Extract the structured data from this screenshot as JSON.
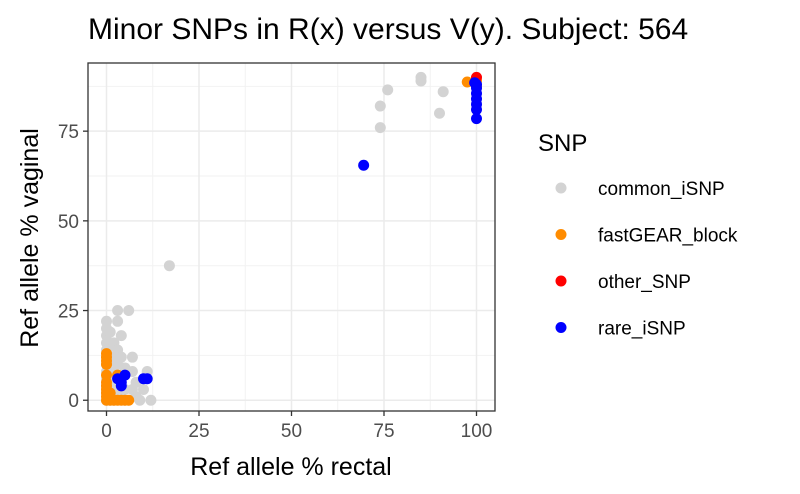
{
  "chart_data": {
    "type": "scatter",
    "title": "Minor SNPs in R(x) versus V(y). Subject: 564",
    "xlabel": "Ref allele % rectal",
    "ylabel": "Ref allele % vaginal",
    "xlim": [
      -5,
      105
    ],
    "ylim": [
      -3,
      94
    ],
    "x_ticks": [
      0,
      25,
      50,
      75,
      100
    ],
    "y_ticks": [
      0,
      25,
      50,
      75
    ],
    "grid": true,
    "legend": {
      "title": "SNP",
      "position": "right"
    },
    "series": [
      {
        "name": "common_iSNP",
        "color": "#d3d3d3",
        "points": [
          [
            0,
            22
          ],
          [
            0,
            20
          ],
          [
            0,
            18
          ],
          [
            0,
            16
          ],
          [
            0,
            14
          ],
          [
            0,
            12
          ],
          [
            0,
            10
          ],
          [
            0,
            8
          ],
          [
            0,
            6
          ],
          [
            0,
            4
          ],
          [
            0,
            2
          ],
          [
            0,
            0
          ],
          [
            1,
            19
          ],
          [
            1,
            15
          ],
          [
            1,
            11
          ],
          [
            1,
            7
          ],
          [
            1,
            3
          ],
          [
            1,
            0
          ],
          [
            2,
            16
          ],
          [
            2,
            12
          ],
          [
            2,
            8
          ],
          [
            2,
            4
          ],
          [
            2,
            0
          ],
          [
            3,
            25
          ],
          [
            3,
            22
          ],
          [
            3,
            14
          ],
          [
            3,
            10
          ],
          [
            3,
            5
          ],
          [
            3,
            1
          ],
          [
            4,
            18
          ],
          [
            4,
            12
          ],
          [
            4,
            6
          ],
          [
            4,
            2
          ],
          [
            5,
            9
          ],
          [
            5,
            3
          ],
          [
            5,
            0
          ],
          [
            6,
            25
          ],
          [
            7,
            12
          ],
          [
            7,
            8
          ],
          [
            7,
            3
          ],
          [
            8,
            5
          ],
          [
            8,
            1
          ],
          [
            9,
            0
          ],
          [
            10,
            3
          ],
          [
            11,
            8
          ],
          [
            12,
            0
          ],
          [
            17,
            37.5
          ],
          [
            74,
            76
          ],
          [
            74,
            82
          ],
          [
            76,
            86.5
          ],
          [
            85,
            89
          ],
          [
            85,
            90
          ],
          [
            90,
            80
          ],
          [
            91,
            86
          ]
        ]
      },
      {
        "name": "fastGEAR_block",
        "color": "#ff8c00",
        "points": [
          [
            0,
            13
          ],
          [
            0,
            12
          ],
          [
            0,
            11
          ],
          [
            0,
            10
          ],
          [
            0,
            7
          ],
          [
            0,
            5
          ],
          [
            0,
            4
          ],
          [
            0,
            3
          ],
          [
            0,
            2
          ],
          [
            0,
            1
          ],
          [
            0,
            0
          ],
          [
            1,
            2
          ],
          [
            1,
            0
          ],
          [
            2,
            0
          ],
          [
            3,
            7
          ],
          [
            3,
            0
          ],
          [
            4,
            0
          ],
          [
            5,
            0
          ],
          [
            6,
            0
          ],
          [
            97.5,
            88.7
          ],
          [
            100,
            87.5
          ],
          [
            100,
            89
          ]
        ]
      },
      {
        "name": "other_SNP",
        "color": "#ff0000",
        "points": [
          [
            100,
            90
          ]
        ]
      },
      {
        "name": "rare_iSNP",
        "color": "#0000ff",
        "points": [
          [
            3,
            6
          ],
          [
            4,
            5
          ],
          [
            5,
            7
          ],
          [
            4,
            4
          ],
          [
            10,
            6
          ],
          [
            11,
            6
          ],
          [
            69.5,
            65.5
          ],
          [
            100,
            78.5
          ],
          [
            100,
            81
          ],
          [
            100,
            82.5
          ],
          [
            100,
            84
          ],
          [
            100,
            85.5
          ],
          [
            100,
            87
          ],
          [
            100,
            88
          ],
          [
            99.5,
            88.5
          ]
        ]
      }
    ]
  }
}
